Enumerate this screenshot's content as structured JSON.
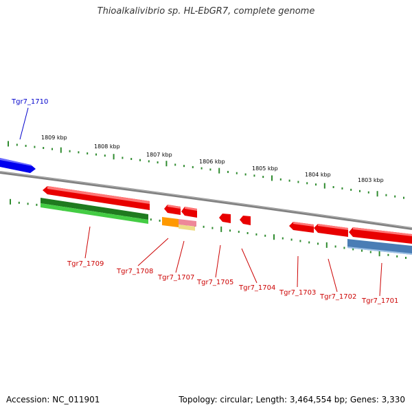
{
  "title": "Thioalkalivibrio sp. HL-EbGR7, complete genome",
  "footer": {
    "accession": "Accession: NC_011901",
    "summary": "Topology: circular; Length: 3,464,554 bp; Genes: 3,330"
  },
  "ruler": {
    "ticks": [
      "1809 kbp",
      "1808 kbp",
      "1807 kbp",
      "1806 kbp",
      "1805 kbp",
      "1804 kbp",
      "1803 kbp"
    ]
  },
  "genes": {
    "blue_label": "Tgr7_1710",
    "red_labels": [
      "Tgr7_1709",
      "Tgr7_1708",
      "Tgr7_1707",
      "Tgr7_1705",
      "Tgr7_1704",
      "Tgr7_1703",
      "Tgr7_1702",
      "Tgr7_1701"
    ]
  },
  "colors": {
    "forward_strand": "#0000ff",
    "reverse_strand": "#ff0000",
    "backbone": "#808080",
    "tick": "#2e8b2e",
    "rna": "#2db82d",
    "other_feature": "#4a7db5",
    "orange_feature": "#ff9900"
  }
}
